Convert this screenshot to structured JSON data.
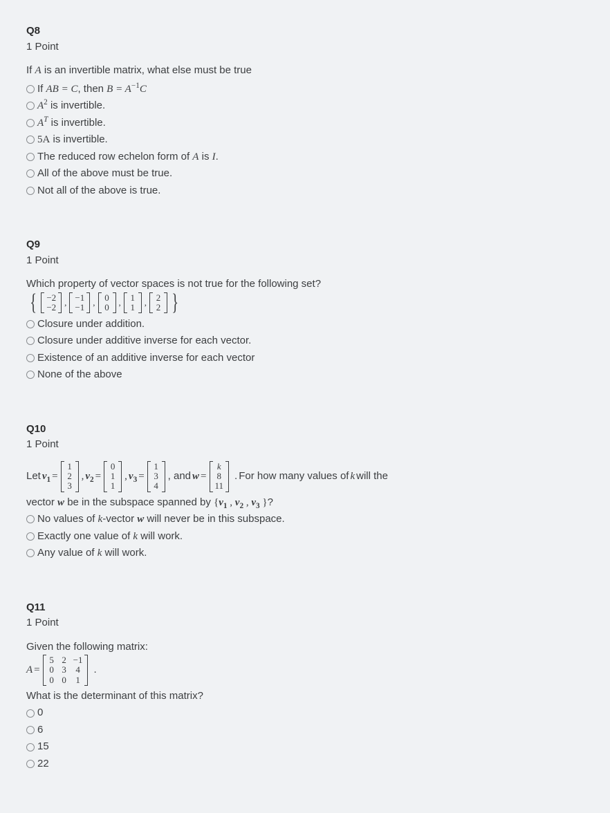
{
  "q8": {
    "header": "Q8",
    "points": "1 Point",
    "prompt_pre": "If ",
    "prompt_math": "A",
    "prompt_post": " is an invertible matrix, what else must be true",
    "options": [
      {
        "t": "opt_q8_0"
      },
      {
        "t": "opt_q8_1"
      },
      {
        "t": "opt_q8_2"
      },
      {
        "t": "opt_q8_3"
      },
      {
        "t": "opt_q8_4"
      },
      {
        "t": "opt_q8_5"
      },
      {
        "t": "opt_q8_6"
      }
    ],
    "opt0_pre": "If ",
    "opt0_mid1": "AB = C",
    "opt0_mid2": ", then ",
    "opt0_mid3": "B = A",
    "opt0_exp": "−1",
    "opt0_end": "C",
    "opt1_m": "A",
    "opt1_exp": "2",
    "opt1_post": " is invertible.",
    "opt2_m": "A",
    "opt2_exp": "T",
    "opt2_post": " is invertible.",
    "opt3_m": "5A",
    "opt3_post": " is invertible.",
    "opt4_pre": "The reduced row echelon form of ",
    "opt4_m": "A",
    "opt4_post": " is ",
    "opt4_m2": "I",
    "opt4_end": ".",
    "opt5": "All of the above must be true.",
    "opt6": "Not all of the above is true."
  },
  "q9": {
    "header": "Q9",
    "points": "1 Point",
    "prompt": "Which property of vector spaces is not true for the following set?",
    "vectors": [
      [
        "−2",
        "−2"
      ],
      [
        "−1",
        "−1"
      ],
      [
        "0",
        "0"
      ],
      [
        "1",
        "1"
      ],
      [
        "2",
        "2"
      ]
    ],
    "options": [
      "Closure under addition.",
      "Closure under additive inverse for each vector.",
      "Existence of an additive inverse for each vector",
      "None of the above"
    ]
  },
  "q10": {
    "header": "Q10",
    "points": "1 Point",
    "let": "Let ",
    "v1": "v1",
    "v2": "v2",
    "v3": "v3",
    "w": "w",
    "eq": " = ",
    "comma": ", ",
    "and": ", and ",
    "dot": ". ",
    "tail": "For how many values of ",
    "k": "k",
    "tail2": " will the",
    "vec1": [
      "1",
      "2",
      "3"
    ],
    "vec2": [
      "0",
      "1",
      "1"
    ],
    "vec3": [
      "1",
      "3",
      "4"
    ],
    "vecw": [
      "k",
      "8",
      "11"
    ],
    "follow1_pre": "vector ",
    "follow1_m": "w",
    "follow1_mid": " be in the subspace spanned by ",
    "follow1_set": "{v1 , v2 , v3 }",
    "follow1_end": "?",
    "opt0_pre": "No values of ",
    "opt0_m1": "k",
    "opt0_mid": "-vector ",
    "opt0_m2": "w",
    "opt0_post": " will never be in this subspace.",
    "opt1_pre": "Exactly one value of ",
    "opt1_m": "k",
    "opt1_post": " will work.",
    "opt2_pre": "Any value of ",
    "opt2_m": "k",
    "opt2_post": " will work."
  },
  "q11": {
    "header": "Q11",
    "points": "1 Point",
    "prompt": "Given the following matrix:",
    "A": "A",
    "eq": " = ",
    "dot": ".",
    "matrix": [
      [
        "5",
        "2",
        "−1"
      ],
      [
        "0",
        "3",
        "4"
      ],
      [
        "0",
        "0",
        "1"
      ]
    ],
    "follow": "What is the determinant of this matrix?",
    "options": [
      "0",
      "6",
      "15",
      "22"
    ]
  }
}
